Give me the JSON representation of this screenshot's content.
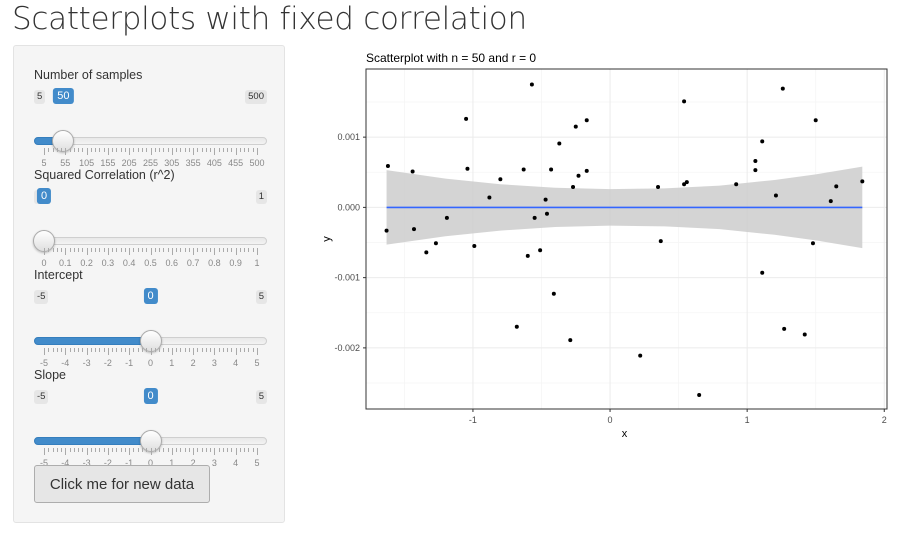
{
  "app": {
    "title": "Scatterplots with fixed correlation"
  },
  "sidebar": {
    "sliders": [
      {
        "id": "samples",
        "label": "Number of samples",
        "min": 5,
        "max": 500,
        "value": 50,
        "min_label": "5",
        "max_label": "500",
        "value_label": "50",
        "ticks": [
          "5",
          "55",
          "105",
          "155",
          "205",
          "255",
          "305",
          "355",
          "405",
          "455",
          "500"
        ],
        "fill_type": "from-min"
      },
      {
        "id": "r2",
        "label": "Squared Correlation (r^2)",
        "min": 0,
        "max": 1,
        "value": 0,
        "min_label": "0",
        "max_label": "1",
        "value_label": "0",
        "ticks": [
          "0",
          "0.1",
          "0.2",
          "0.3",
          "0.4",
          "0.5",
          "0.6",
          "0.7",
          "0.8",
          "0.9",
          "1"
        ],
        "fill_type": "from-min"
      },
      {
        "id": "intercept",
        "label": "Intercept",
        "min": -5,
        "max": 5,
        "value": 0,
        "min_label": "-5",
        "max_label": "5",
        "value_label": "0",
        "ticks": [
          "-5",
          "-4",
          "-3",
          "-2",
          "-1",
          "0",
          "1",
          "2",
          "3",
          "4",
          "5"
        ],
        "fill_type": "from-min"
      },
      {
        "id": "slope",
        "label": "Slope",
        "min": -5,
        "max": 5,
        "value": 0,
        "min_label": "-5",
        "max_label": "5",
        "value_label": "0",
        "ticks": [
          "-5",
          "-4",
          "-3",
          "-2",
          "-1",
          "0",
          "1",
          "2",
          "3",
          "4",
          "5"
        ],
        "fill_type": "from-min"
      }
    ],
    "button": {
      "label": "Click me for new data"
    }
  },
  "chart_data": {
    "type": "scatter",
    "title": "Scatterplot with n = 50 and r = 0",
    "xlabel": "x",
    "ylabel": "y",
    "xlim": [
      -1.78,
      2.02
    ],
    "ylim": [
      -0.00287,
      0.00197
    ],
    "x_ticks": [
      -1,
      0,
      1,
      2
    ],
    "x_tick_labels": [
      "-1",
      "0",
      "1",
      "2"
    ],
    "y_ticks": [
      -0.002,
      -0.001,
      0,
      0.001
    ],
    "y_tick_labels": [
      "-0.002",
      "-0.001",
      "0.000",
      "0.001"
    ],
    "grid": true,
    "colors": {
      "panel_border": "#333333",
      "grid_major": "#ebebeb",
      "grid_minor": "#f5f5f5",
      "points": "#000000",
      "fit_line": "#3366ff",
      "confidence_band": "#cccccc"
    },
    "points": [
      {
        "x": -1.62,
        "y": 0.00059
      },
      {
        "x": -1.63,
        "y": -0.00033
      },
      {
        "x": -1.44,
        "y": 0.00051
      },
      {
        "x": -1.43,
        "y": -0.00031
      },
      {
        "x": -1.34,
        "y": -0.00064
      },
      {
        "x": -1.27,
        "y": -0.00051
      },
      {
        "x": -1.19,
        "y": -0.00015
      },
      {
        "x": -1.05,
        "y": 0.00126
      },
      {
        "x": -1.04,
        "y": 0.00055
      },
      {
        "x": -0.99,
        "y": -0.00055
      },
      {
        "x": -0.88,
        "y": 0.00014
      },
      {
        "x": -0.8,
        "y": 0.0004
      },
      {
        "x": -0.68,
        "y": -0.0017
      },
      {
        "x": -0.63,
        "y": 0.00054
      },
      {
        "x": -0.6,
        "y": -0.00069
      },
      {
        "x": -0.57,
        "y": 0.00175
      },
      {
        "x": -0.55,
        "y": -0.00015
      },
      {
        "x": -0.51,
        "y": -0.00061
      },
      {
        "x": -0.47,
        "y": 0.00011
      },
      {
        "x": -0.46,
        "y": -9e-05
      },
      {
        "x": -0.43,
        "y": 0.00054
      },
      {
        "x": -0.41,
        "y": -0.00123
      },
      {
        "x": -0.37,
        "y": 0.00091
      },
      {
        "x": -0.29,
        "y": -0.00189
      },
      {
        "x": -0.27,
        "y": 0.00029
      },
      {
        "x": -0.25,
        "y": 0.00115
      },
      {
        "x": -0.23,
        "y": 0.00045
      },
      {
        "x": -0.17,
        "y": 0.00124
      },
      {
        "x": -0.17,
        "y": 0.00052
      },
      {
        "x": 0.22,
        "y": -0.00211
      },
      {
        "x": 0.35,
        "y": 0.00029
      },
      {
        "x": 0.37,
        "y": -0.00048
      },
      {
        "x": 0.54,
        "y": 0.00151
      },
      {
        "x": 0.54,
        "y": 0.00033
      },
      {
        "x": 0.56,
        "y": 0.00036
      },
      {
        "x": 0.65,
        "y": -0.00267
      },
      {
        "x": 0.92,
        "y": 0.00033
      },
      {
        "x": 1.06,
        "y": 0.00066
      },
      {
        "x": 1.06,
        "y": 0.00053
      },
      {
        "x": 1.11,
        "y": 0.00094
      },
      {
        "x": 1.11,
        "y": -0.00093
      },
      {
        "x": 1.21,
        "y": 0.00017
      },
      {
        "x": 1.26,
        "y": 0.00169
      },
      {
        "x": 1.27,
        "y": -0.00173
      },
      {
        "x": 1.42,
        "y": -0.00181
      },
      {
        "x": 1.48,
        "y": -0.00051
      },
      {
        "x": 1.5,
        "y": 0.00124
      },
      {
        "x": 1.61,
        "y": 9e-05
      },
      {
        "x": 1.65,
        "y": 0.0003
      },
      {
        "x": 1.84,
        "y": 0.00037
      }
    ],
    "fit_line": {
      "x_start": -1.63,
      "x_end": 1.84,
      "intercept": 0.0,
      "slope": 0.0
    },
    "confidence_band": [
      {
        "x": -1.63,
        "lower": -0.00053,
        "upper": 0.00053
      },
      {
        "x": -1.2,
        "lower": -0.00041,
        "upper": 0.00041
      },
      {
        "x": -0.8,
        "lower": -0.00033,
        "upper": 0.00033
      },
      {
        "x": -0.4,
        "lower": -0.00028,
        "upper": 0.00028
      },
      {
        "x": 0.0,
        "lower": -0.00026,
        "upper": 0.00026
      },
      {
        "x": 0.4,
        "lower": -0.00027,
        "upper": 0.00027
      },
      {
        "x": 0.8,
        "lower": -0.00031,
        "upper": 0.00031
      },
      {
        "x": 1.2,
        "lower": -0.00039,
        "upper": 0.00039
      },
      {
        "x": 1.5,
        "lower": -0.00047,
        "upper": 0.00047
      },
      {
        "x": 1.84,
        "lower": -0.00058,
        "upper": 0.00058
      }
    ]
  }
}
